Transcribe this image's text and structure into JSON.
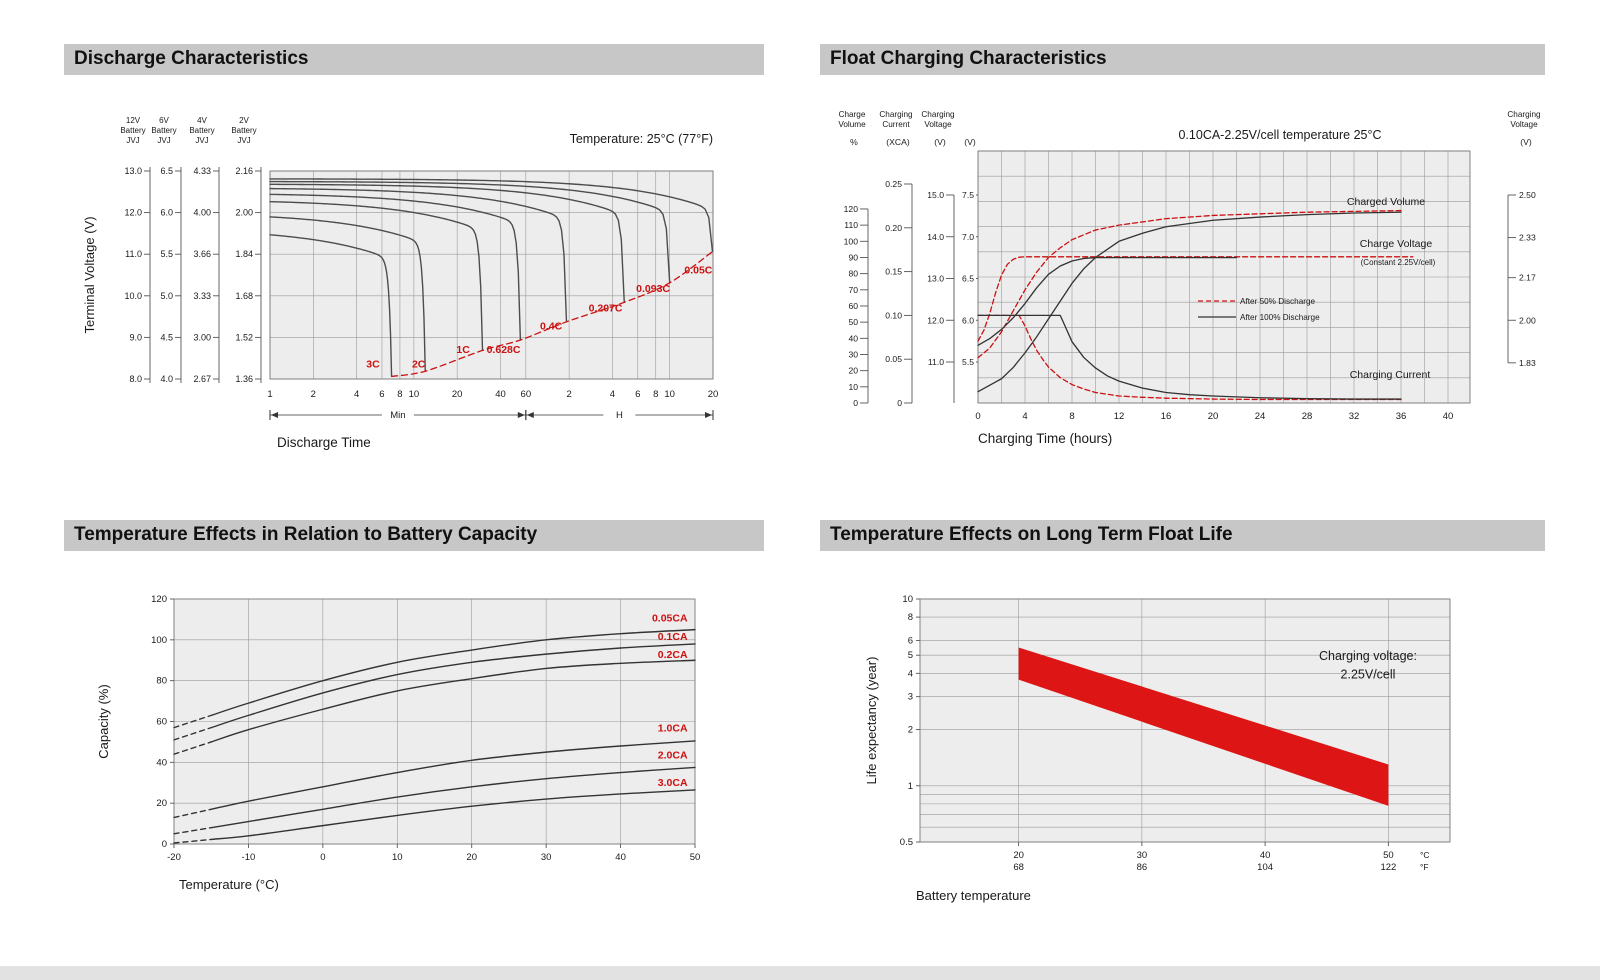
{
  "page": {
    "background": "#ffffff",
    "footer_color": "#e2e2e2"
  },
  "panels": [
    {
      "title": "Discharge Characteristics"
    },
    {
      "title": "Float Charging Characteristics"
    },
    {
      "title": "Temperature Effects in Relation to Battery Capacity"
    },
    {
      "title": "Temperature Effects on Long Term Float Life"
    }
  ],
  "chart_data": [
    {
      "type": "line",
      "name": "discharge-characteristics",
      "temperature_note": "Temperature: 25°C (77°F)",
      "ylabel": "Terminal Voltage (V)",
      "xlabel": "Discharge Time",
      "x_segment_labels": [
        "Min",
        "H"
      ],
      "voltage_scales": [
        {
          "header": [
            "12V",
            "Battery",
            "JVJ"
          ],
          "ticks": [
            "13.0",
            "12.0",
            "11.0",
            "10.0",
            "9.0",
            "8.0"
          ]
        },
        {
          "header": [
            "6V",
            "Battery",
            "JVJ"
          ],
          "ticks": [
            "6.5",
            "6.0",
            "5.5",
            "5.0",
            "4.5",
            "4.0"
          ]
        },
        {
          "header": [
            "4V",
            "Battery",
            "JVJ"
          ],
          "ticks": [
            "4.33",
            "4.00",
            "3.66",
            "3.33",
            "3.00",
            "2.67"
          ]
        },
        {
          "header": [
            "2V",
            "Battery",
            "JVJ"
          ],
          "ticks": [
            "2.16",
            "2.00",
            "1.84",
            "1.68",
            "1.52",
            "1.36"
          ]
        }
      ],
      "y_range_2v": [
        2.16,
        1.36
      ],
      "x_ticks_minutes": [
        1,
        2,
        4,
        6,
        8,
        10,
        20,
        40,
        60
      ],
      "x_ticks_hours": [
        2,
        4,
        6,
        8,
        10,
        20
      ],
      "curves": [
        {
          "label": "3C",
          "end_minutes": 7,
          "v_start": 1.94,
          "v_end": 1.37,
          "label_at": [
            5.2,
            1.405
          ]
        },
        {
          "label": "2C",
          "end_minutes": 12,
          "v_start": 2.0,
          "v_end": 1.39,
          "label_at": [
            10.8,
            1.405
          ]
        },
        {
          "label": "1C",
          "end_minutes": 30,
          "v_start": 2.05,
          "v_end": 1.47,
          "label_at": [
            22,
            1.46
          ]
        },
        {
          "label": "0.628C",
          "end_minutes": 55,
          "v_start": 2.075,
          "v_end": 1.51,
          "label_at": [
            42,
            1.46
          ]
        },
        {
          "label": "0.4C",
          "end_minutes": 115,
          "v_start": 2.095,
          "v_end": 1.58,
          "label_at": [
            90,
            1.55
          ]
        },
        {
          "label": "0.207C",
          "end_minutes": 290,
          "v_start": 2.11,
          "v_end": 1.655,
          "label_at": [
            215,
            1.62
          ]
        },
        {
          "label": "0.093C",
          "end_minutes": 600,
          "v_start": 2.12,
          "v_end": 1.73,
          "label_at": [
            460,
            1.695
          ]
        },
        {
          "label": "0.05C",
          "end_minutes": 1190,
          "v_start": 2.13,
          "v_end": 1.85,
          "label_at": [
            950,
            1.765
          ]
        }
      ],
      "label_color": "#cc1111",
      "curve_color": "#4d4d4d"
    },
    {
      "type": "line",
      "name": "float-charging-characteristics",
      "condition_note": "0.10CA-2.25V/cell  temperature 25°C",
      "xlabel": "Charging Time (hours)",
      "x_ticks": [
        0,
        4,
        8,
        12,
        16,
        20,
        24,
        28,
        32,
        36,
        40
      ],
      "left_axes": [
        {
          "header": [
            "Charge",
            "Volume"
          ],
          "unit": "%",
          "ticks": [
            "120",
            "110",
            "100",
            "90",
            "80",
            "70",
            "60",
            "50",
            "40",
            "30",
            "20",
            "10",
            "0"
          ]
        },
        {
          "header": [
            "Charging",
            "Current"
          ],
          "unit": "(XCA)",
          "ticks": [
            "0.25",
            "0.20",
            "0.15",
            "0.10",
            "0.05",
            "0"
          ]
        },
        {
          "header": [
            "Charging",
            "Voltage"
          ],
          "unit": "(V)",
          "ticks": [
            "15.0",
            "14.0",
            "13.0",
            "12.0",
            "11.0"
          ]
        },
        {
          "header": [],
          "unit": "(V)",
          "ticks": [
            "7.5",
            "7.0",
            "6.5",
            "6.0",
            "5.5"
          ]
        }
      ],
      "right_axis": {
        "header": [
          "Charging",
          "Voltage"
        ],
        "unit": "(V)",
        "ticks": [
          "2.50",
          "2.33",
          "2.17",
          "2.00",
          "1.83"
        ]
      },
      "legend": [
        {
          "label": "After  50% Discharge",
          "color": "#cc1111",
          "dashed": true
        },
        {
          "label": "After 100% Discharge",
          "color": "#333333",
          "dashed": false
        }
      ],
      "annotations": {
        "charged_volume": "Charged Volume",
        "charge_voltage": "Charge Voltage",
        "charge_voltage_sub": "(Constant 2.25V/cell)",
        "charging_current": "Charging Current"
      },
      "series": [
        {
          "name": "charged-volume-50",
          "scale": "volume",
          "dashed": true,
          "color": "#cc1111",
          "points": [
            [
              0,
              28
            ],
            [
              1,
              34
            ],
            [
              2,
              44
            ],
            [
              3,
              57
            ],
            [
              4,
              70
            ],
            [
              5,
              81
            ],
            [
              6,
              90
            ],
            [
              7,
              96
            ],
            [
              8,
              101
            ],
            [
              10,
              107
            ],
            [
              12,
              110
            ],
            [
              14,
              112
            ],
            [
              16,
              114
            ],
            [
              20,
              116
            ],
            [
              24,
              117
            ],
            [
              28,
              118
            ],
            [
              32,
              118.5
            ],
            [
              36,
              119
            ]
          ]
        },
        {
          "name": "charged-volume-100",
          "scale": "volume",
          "dashed": false,
          "color": "#333333",
          "points": [
            [
              0,
              7
            ],
            [
              2,
              15
            ],
            [
              3,
              22
            ],
            [
              4,
              31
            ],
            [
              5,
              41
            ],
            [
              6,
              52
            ],
            [
              7,
              63
            ],
            [
              8,
              74
            ],
            [
              9,
              83
            ],
            [
              10,
              90
            ],
            [
              12,
              100
            ],
            [
              14,
              105
            ],
            [
              16,
              109
            ],
            [
              20,
              113
            ],
            [
              24,
              115
            ],
            [
              28,
              116.5
            ],
            [
              32,
              117.5
            ],
            [
              36,
              118
            ]
          ]
        },
        {
          "name": "charge-voltage-50",
          "scale": "voltage",
          "dashed": true,
          "color": "#cc1111",
          "points": [
            [
              0,
              5.75
            ],
            [
              0.5,
              5.88
            ],
            [
              1,
              6.08
            ],
            [
              1.5,
              6.33
            ],
            [
              2,
              6.54
            ],
            [
              2.5,
              6.67
            ],
            [
              3,
              6.73
            ],
            [
              3.5,
              6.755
            ],
            [
              4,
              6.76
            ],
            [
              37,
              6.76
            ]
          ]
        },
        {
          "name": "charge-voltage-100",
          "scale": "voltage",
          "dashed": false,
          "color": "#333333",
          "points": [
            [
              0,
              5.7
            ],
            [
              1,
              5.78
            ],
            [
              2,
              5.89
            ],
            [
              3,
              6.03
            ],
            [
              4,
              6.2
            ],
            [
              5,
              6.39
            ],
            [
              6,
              6.55
            ],
            [
              7,
              6.65
            ],
            [
              8,
              6.71
            ],
            [
              9,
              6.74
            ],
            [
              10,
              6.75
            ],
            [
              22,
              6.75
            ]
          ]
        },
        {
          "name": "charging-current-50",
          "scale": "current",
          "dashed": true,
          "color": "#cc1111",
          "points": [
            [
              0,
              0.1
            ],
            [
              3.5,
              0.1
            ],
            [
              4,
              0.088
            ],
            [
              4.5,
              0.073
            ],
            [
              5,
              0.06
            ],
            [
              5.5,
              0.05
            ],
            [
              6,
              0.041
            ],
            [
              7,
              0.029
            ],
            [
              8,
              0.021
            ],
            [
              9,
              0.016
            ],
            [
              10,
              0.012
            ],
            [
              12,
              0.008
            ],
            [
              14,
              0.0065
            ],
            [
              16,
              0.0055
            ],
            [
              20,
              0.0045
            ],
            [
              24,
              0.004
            ],
            [
              30,
              0.004
            ],
            [
              36,
              0.004
            ]
          ]
        },
        {
          "name": "charging-current-100",
          "scale": "current",
          "dashed": false,
          "color": "#333333",
          "points": [
            [
              0,
              0.1
            ],
            [
              7,
              0.1
            ],
            [
              7.4,
              0.088
            ],
            [
              8,
              0.07
            ],
            [
              9,
              0.052
            ],
            [
              10,
              0.04
            ],
            [
              11,
              0.031
            ],
            [
              12,
              0.025
            ],
            [
              14,
              0.017
            ],
            [
              16,
              0.012
            ],
            [
              18,
              0.0095
            ],
            [
              20,
              0.008
            ],
            [
              24,
              0.006
            ],
            [
              28,
              0.005
            ],
            [
              32,
              0.0045
            ],
            [
              36,
              0.0045
            ]
          ]
        }
      ]
    },
    {
      "type": "line",
      "name": "temperature-effects-battery-capacity",
      "xlabel": "Temperature (°C)",
      "ylabel": "Capacity (%)",
      "x_ticks": [
        -20,
        -10,
        0,
        10,
        20,
        30,
        40,
        50
      ],
      "y_ticks": [
        0,
        20,
        40,
        60,
        80,
        100,
        120
      ],
      "label_color": "#cc1111",
      "curve_color": "#333333",
      "series": [
        {
          "label": "0.05CA",
          "label_y": 109,
          "points": [
            [
              -20,
              57
            ],
            [
              -10,
              69
            ],
            [
              0,
              80
            ],
            [
              10,
              89
            ],
            [
              20,
              95
            ],
            [
              30,
              100
            ],
            [
              40,
              103
            ],
            [
              50,
              105
            ]
          ]
        },
        {
          "label": "0.1CA",
          "label_y": 100,
          "points": [
            [
              -20,
              51
            ],
            [
              -10,
              63
            ],
            [
              0,
              74
            ],
            [
              10,
              83
            ],
            [
              20,
              89
            ],
            [
              30,
              93
            ],
            [
              40,
              96
            ],
            [
              50,
              98
            ]
          ]
        },
        {
          "label": "0.2CA",
          "label_y": 91,
          "points": [
            [
              -20,
              44
            ],
            [
              -10,
              56
            ],
            [
              0,
              66
            ],
            [
              10,
              75
            ],
            [
              20,
              81
            ],
            [
              30,
              86
            ],
            [
              40,
              88.5
            ],
            [
              50,
              90
            ]
          ]
        },
        {
          "label": "1.0CA",
          "label_y": 55,
          "points": [
            [
              -20,
              13
            ],
            [
              -10,
              21
            ],
            [
              0,
              28
            ],
            [
              10,
              35
            ],
            [
              20,
              41
            ],
            [
              30,
              45
            ],
            [
              40,
              48
            ],
            [
              50,
              50.5
            ]
          ]
        },
        {
          "label": "2.0CA",
          "label_y": 42,
          "points": [
            [
              -20,
              5
            ],
            [
              -10,
              11
            ],
            [
              0,
              17
            ],
            [
              10,
              23
            ],
            [
              20,
              28
            ],
            [
              30,
              32
            ],
            [
              40,
              35
            ],
            [
              50,
              37.5
            ]
          ]
        },
        {
          "label": "3.0CA",
          "label_y": 28.5,
          "points": [
            [
              -20,
              0.5
            ],
            [
              -10,
              4
            ],
            [
              0,
              9
            ],
            [
              10,
              14
            ],
            [
              20,
              18.5
            ],
            [
              30,
              22
            ],
            [
              40,
              24.5
            ],
            [
              50,
              26.5
            ]
          ]
        }
      ]
    },
    {
      "type": "area",
      "name": "temperature-effects-float-life",
      "xlabel": "Battery temperature",
      "ylabel": "Life expectancy (year)",
      "x_ticks": [
        {
          "c": "20",
          "f": "68"
        },
        {
          "c": "30",
          "f": "86"
        },
        {
          "c": "40",
          "f": "104"
        },
        {
          "c": "50",
          "f": "122"
        }
      ],
      "unit_row": {
        "c": "°C",
        "f": "°F"
      },
      "y_ticks": [
        "10",
        "8",
        "6",
        "5",
        "4",
        "3",
        "2",
        "1",
        "0.5"
      ],
      "y_grid": [
        0.5,
        0.6,
        0.7,
        0.8,
        0.9,
        1,
        2,
        3,
        4,
        5,
        6,
        8,
        10
      ],
      "annotation": [
        "Charging voltage:",
        "2.25V/cell"
      ],
      "band": {
        "color": "#dd1515",
        "x": [
          20,
          50
        ],
        "upper": [
          5.5,
          1.3
        ],
        "lower": [
          3.7,
          0.78
        ]
      }
    }
  ]
}
